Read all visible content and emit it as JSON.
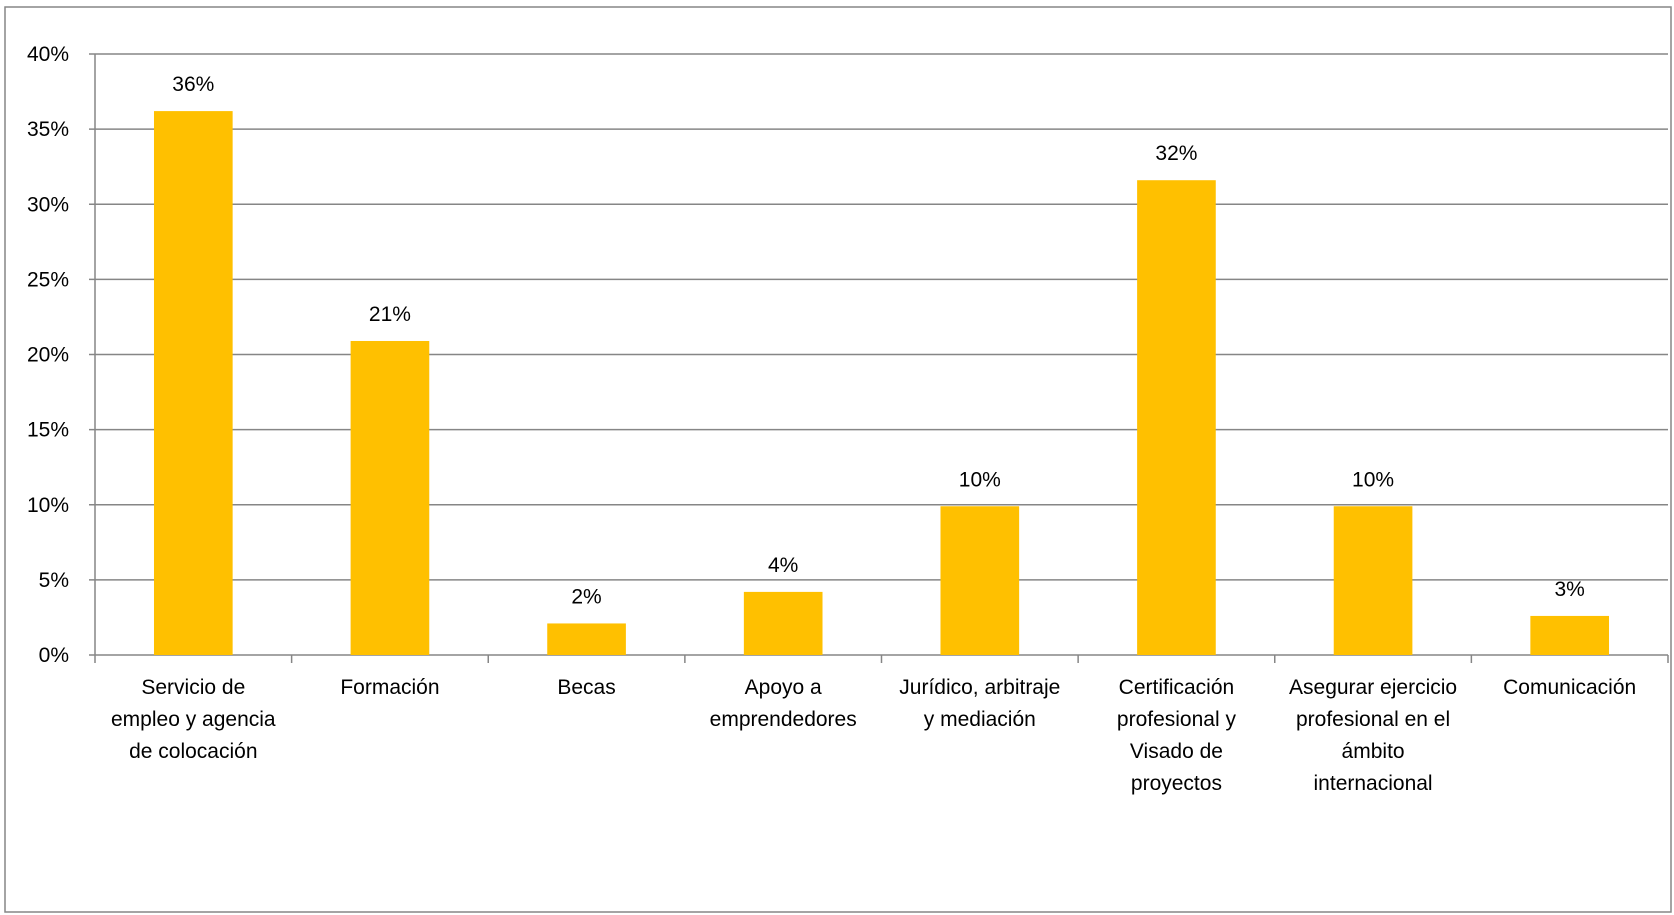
{
  "chart_data": {
    "type": "bar",
    "categories": [
      "Servicio de empleo y agencia de colocación",
      "Formación",
      "Becas",
      "Apoyo a emprendedores",
      "Jurídico, arbitraje y mediación",
      "Certificación profesional y Visado de proyectos",
      "Asegurar ejercicio profesional en el ámbito internacional",
      "Comunicación"
    ],
    "category_label_lines": [
      [
        "Servicio de",
        "empleo y agencia",
        "de colocación"
      ],
      [
        "Formación"
      ],
      [
        "Becas"
      ],
      [
        "Apoyo a",
        "emprendedores"
      ],
      [
        "Jurídico, arbitraje",
        "y mediación"
      ],
      [
        "Certificación",
        "profesional y",
        "Visado de",
        "proyectos"
      ],
      [
        "Asegurar ejercicio",
        "profesional en el",
        "ámbito",
        "internacional"
      ],
      [
        "Comunicación"
      ]
    ],
    "values": [
      36.2,
      20.9,
      2.1,
      4.2,
      9.9,
      31.6,
      9.9,
      2.6
    ],
    "data_labels": [
      "36%",
      "21%",
      "2%",
      "4%",
      "10%",
      "32%",
      "10%",
      "3%"
    ],
    "ylim": [
      0,
      40
    ],
    "yticks": [
      0,
      5,
      10,
      15,
      20,
      25,
      30,
      35,
      40
    ],
    "ytick_labels": [
      "0%",
      "5%",
      "10%",
      "15%",
      "20%",
      "25%",
      "30%",
      "35%",
      "40%"
    ],
    "title": "",
    "xlabel": "",
    "ylabel": "",
    "grid": true,
    "legend": "none",
    "bar_color": "#FFC000",
    "gridline_color": "#868686",
    "axis_color": "#868686",
    "border_color": "#868686"
  }
}
